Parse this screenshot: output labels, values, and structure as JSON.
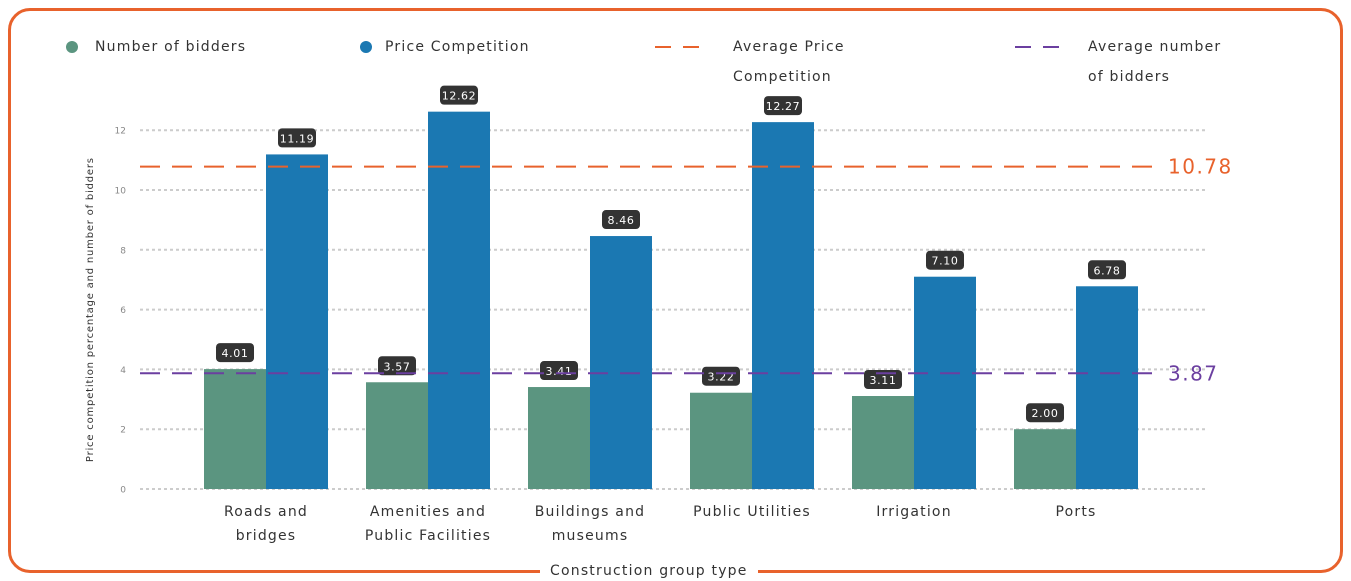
{
  "chart_data": {
    "type": "bar",
    "categories": [
      "Roads and bridges",
      "Amenities and Public Facilities",
      "Buildings and museums",
      "Public Utilities",
      "Irrigation",
      "Ports"
    ],
    "series": [
      {
        "name": "Number of bidders",
        "color": "#5b9580",
        "values": [
          4.01,
          3.57,
          3.41,
          3.22,
          3.11,
          2.0
        ],
        "value_labels": [
          "4.01",
          "3.57",
          "3.41",
          "3.22",
          "3.11",
          "2.00"
        ]
      },
      {
        "name": "Price Competition",
        "color": "#1b78b2",
        "values": [
          11.19,
          12.62,
          8.46,
          12.27,
          7.1,
          6.78
        ],
        "value_labels": [
          "11.19",
          "12.62",
          "8.46",
          "12.27",
          "7.10",
          "6.78"
        ]
      }
    ],
    "reference_lines": [
      {
        "name": "Average Price Competition",
        "value": 10.78,
        "color": "#e8622c"
      },
      {
        "name": "Average number of bidders",
        "value": 3.87,
        "color": "#6b3fa0"
      }
    ],
    "ylabel": "Price competition percentage and number of bidders",
    "xlabel": "Construction group type",
    "ylim": [
      0,
      13
    ],
    "yticks": [
      0,
      2,
      4,
      6,
      8,
      10,
      12
    ],
    "grid": true
  }
}
